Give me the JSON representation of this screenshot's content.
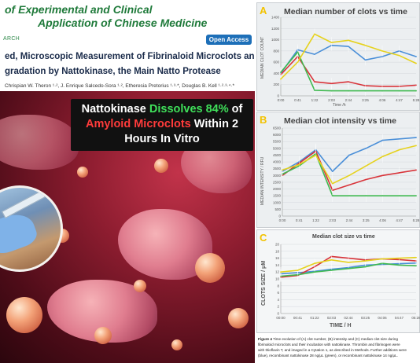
{
  "journal": {
    "line1": "of Experimental and Clinical",
    "line2": "Application of Chinese Medicine"
  },
  "article_type": "ARCH",
  "open_access": "Open Access",
  "title_line1": "ed, Microscopic Measurement of Fibrinaloid Microclots and",
  "title_line2": "gradation by Nattokinase, the Main Natto Protease",
  "authors": "Chrispian W. Theron ¹·², J. Enrique Salcedo-Sora ¹·², Etheresia Pretorius ¹·³·*, Douglas B. Kell ¹·²·³·⁴·*",
  "banner": {
    "l1a": "Nattokinase ",
    "l1b": "Dissolves 84%",
    "l1c": " of",
    "l2a": "Amyloid Microclots",
    "l2b": " Within 2",
    "l3": "Hours In Vitro"
  },
  "colors": {
    "journal_green": "#1f7a3a",
    "open_access_blue": "#1d6fb8",
    "series_blue": "#4a8fd8",
    "series_red": "#d8343a",
    "series_green": "#3fb950",
    "series_yellow": "#e6d21e",
    "panel_label": "#f2c200"
  },
  "chart_data": [
    {
      "panel": "A",
      "type": "line",
      "title": "Median number of clots vs time",
      "ylabel": "MEDIAN CLOT COUNT",
      "xlabel": "Time /h",
      "categories": [
        "0:00",
        "0:41",
        "1:22",
        "2:03",
        "2:44",
        "3:25",
        "4:06",
        "4:47",
        "5:28"
      ],
      "yticks": [
        "0",
        "200",
        "400",
        "600",
        "800",
        "1000",
        "1200",
        "1400"
      ],
      "ylim": [
        0,
        1400
      ],
      "series": [
        {
          "color": "#4a8fd8",
          "values": [
            400,
            820,
            740,
            900,
            880,
            640,
            700,
            800,
            700
          ]
        },
        {
          "color": "#d8343a",
          "values": [
            380,
            700,
            250,
            220,
            250,
            180,
            170,
            170,
            190
          ]
        },
        {
          "color": "#3fb950",
          "values": [
            420,
            780,
            100,
            90,
            90,
            90,
            90,
            90,
            90
          ]
        },
        {
          "color": "#e6d21e",
          "values": [
            300,
            600,
            1100,
            950,
            990,
            900,
            800,
            720,
            580
          ]
        }
      ]
    },
    {
      "panel": "B",
      "type": "line",
      "title": "Median clot intensity vs time",
      "ylabel": "MEDIAN INTENSITY / RFU",
      "xlabel": "",
      "categories": [
        "0:00",
        "0:41",
        "1:22",
        "2:03",
        "2:44",
        "3:25",
        "4:06",
        "4:47",
        "5:28"
      ],
      "yticks": [
        "0",
        "500",
        "1000",
        "1500",
        "2000",
        "2500",
        "3000",
        "3500",
        "4000",
        "4500",
        "5000",
        "5500",
        "6000",
        "6500"
      ],
      "ylim": [
        0,
        6500
      ],
      "series": [
        {
          "color": "#4a8fd8",
          "values": [
            3300,
            4000,
            4900,
            3300,
            4500,
            5000,
            5600,
            5700,
            5800
          ]
        },
        {
          "color": "#d8343a",
          "values": [
            3000,
            3900,
            4800,
            1900,
            2300,
            2700,
            3000,
            3200,
            3400
          ]
        },
        {
          "color": "#3fb950",
          "values": [
            3100,
            3700,
            4600,
            1500,
            1500,
            1500,
            1500,
            1500,
            1500
          ]
        },
        {
          "color": "#e6d21e",
          "values": [
            3400,
            3800,
            4500,
            2400,
            3000,
            3700,
            4400,
            4900,
            5200
          ]
        }
      ]
    },
    {
      "panel": "C",
      "type": "line",
      "title": "Median clot size vs time",
      "ylabel": "CLOTS SIZE / μM",
      "xlabel": "TIME / H",
      "categories": [
        "00:00",
        "00:41",
        "01:22",
        "02:03",
        "02:44",
        "03:25",
        "04:06",
        "04:47",
        "05:28"
      ],
      "yticks": [
        "0",
        "2",
        "4",
        "6",
        "8",
        "10",
        "12",
        "14",
        "16",
        "18",
        "20"
      ],
      "ylim": [
        0,
        20
      ],
      "series": [
        {
          "color": "#4a8fd8",
          "values": [
            11.5,
            11.8,
            12.2,
            12.8,
            13.3,
            14.0,
            14.2,
            14.4,
            14.6
          ]
        },
        {
          "color": "#d8343a",
          "values": [
            10.5,
            11.0,
            13.5,
            16.5,
            16.0,
            15.5,
            15.8,
            15.6,
            15.2
          ]
        },
        {
          "color": "#3fb950",
          "values": [
            10.8,
            11.2,
            12.0,
            12.5,
            13.0,
            13.5,
            14.5,
            14.0,
            13.8
          ]
        },
        {
          "color": "#e6d21e",
          "values": [
            12.0,
            12.5,
            14.5,
            15.5,
            14.8,
            15.2,
            15.8,
            16.0,
            16.2
          ]
        }
      ]
    }
  ],
  "caption": {
    "lead": "Figure 4",
    "l1": " Time evolution of (A) clot number, (B) intensity and (C) median clot size during",
    "l2": "fibrinaloid microclots and their incubation with nattokinase. Thrombin and fibrinogen were",
    "l3": "with thioflavin T, and imaged in a Cytation 1, as described in Methods. Further additions were",
    "l4": "(blue), recombinant nattokinase 28 ng/μL (green), or recombinant nattokinase 14 ng/μL."
  }
}
